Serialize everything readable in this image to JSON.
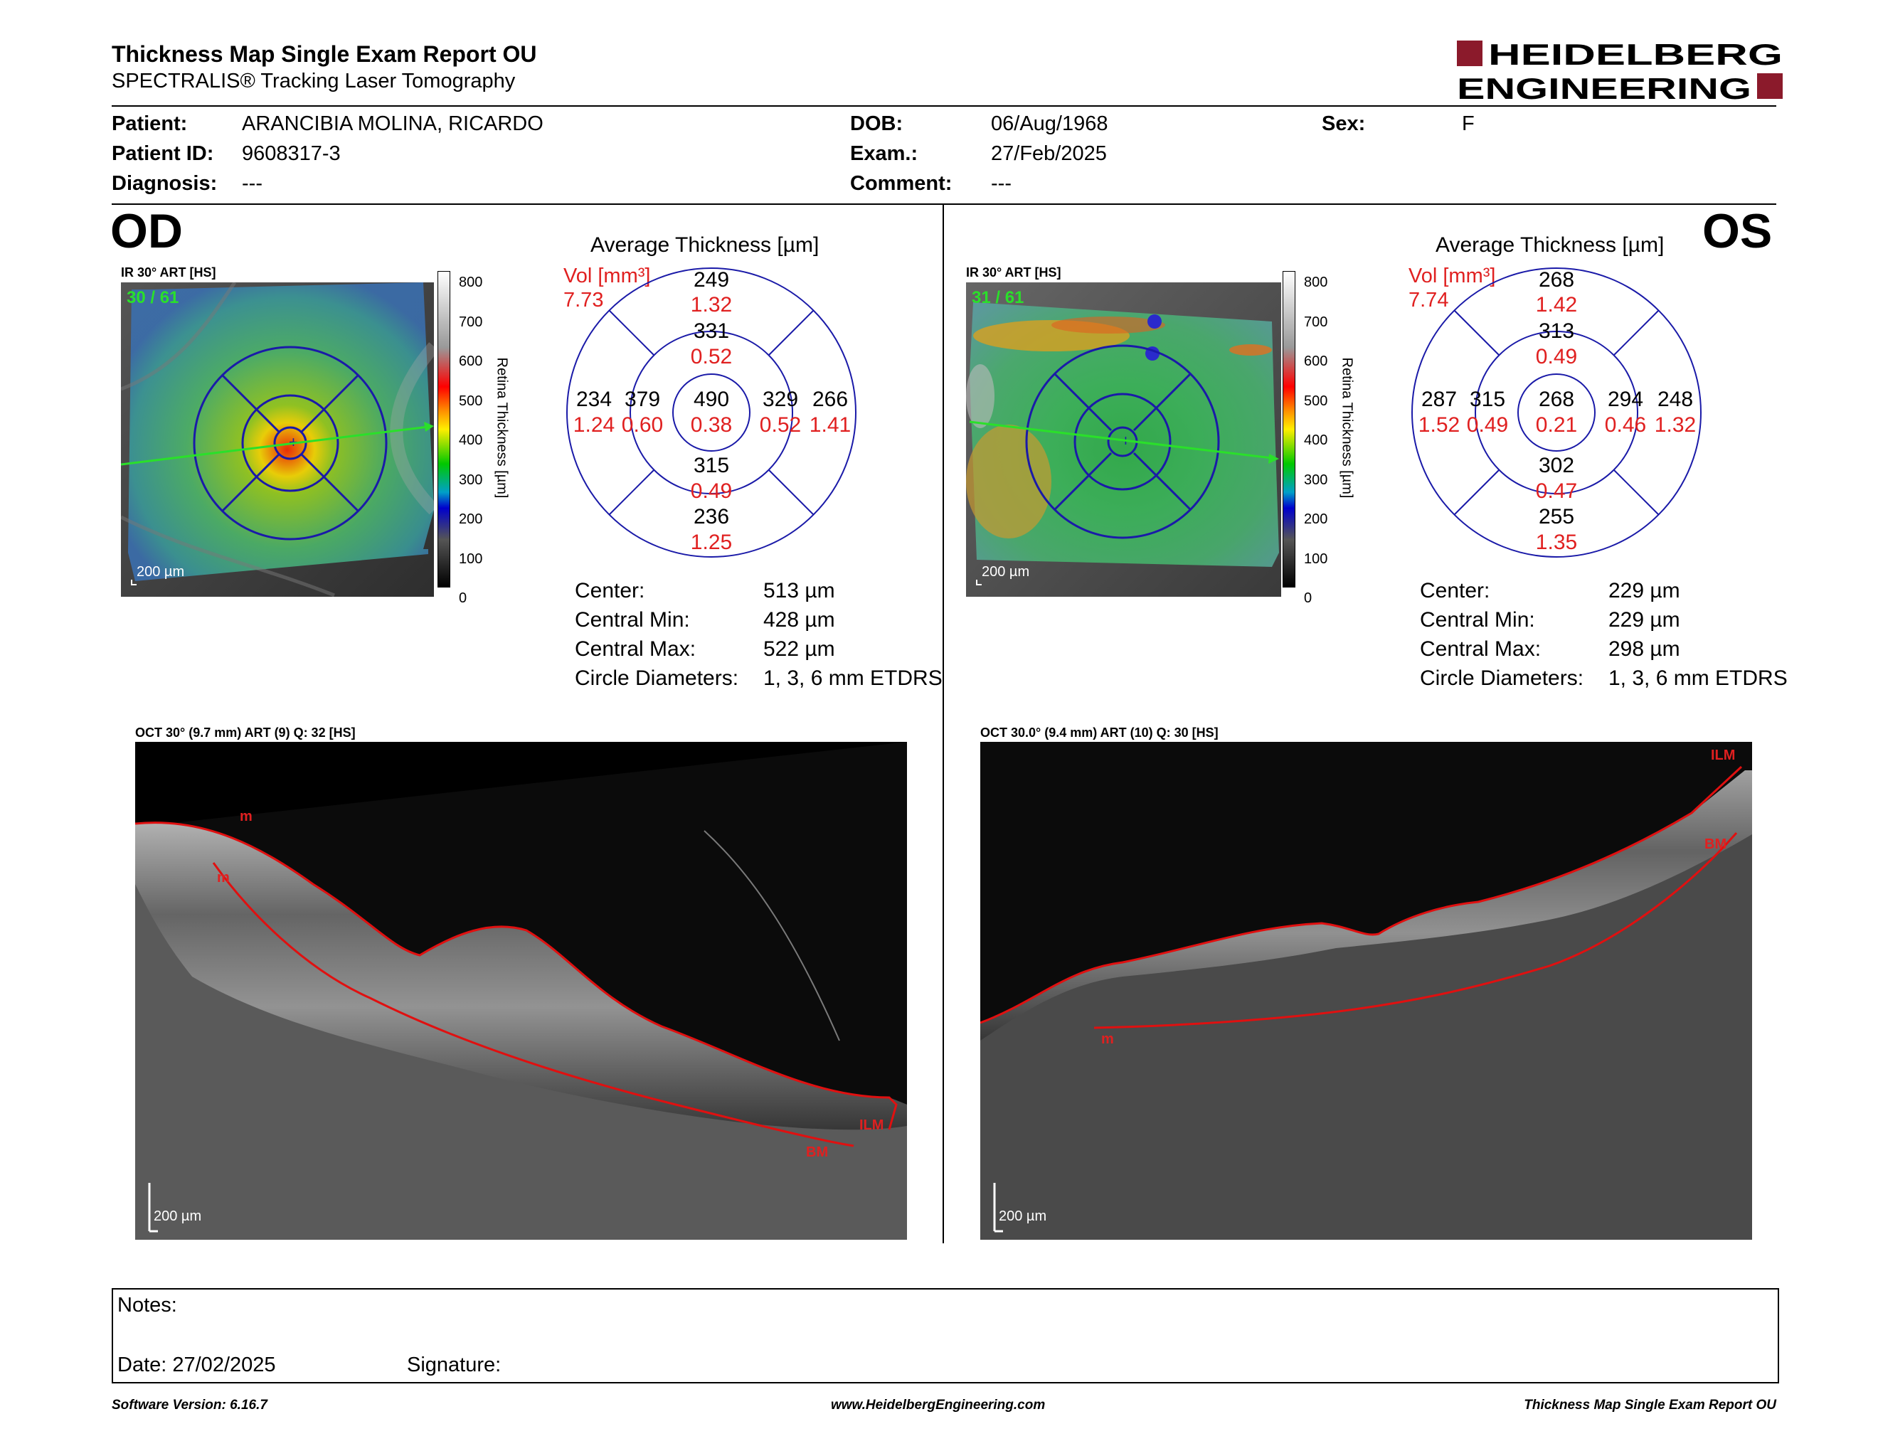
{
  "header": {
    "title": "Thickness Map Single Exam Report OU",
    "subtitle": "SPECTRALIS® Tracking Laser Tomography",
    "logo_top": "HEIDELBERG",
    "logo_bottom": "ENGINEERING",
    "logo_color": "#8b1a2b"
  },
  "patient": {
    "patient_label": "Patient:",
    "patient_value": "ARANCIBIA MOLINA, RICARDO",
    "id_label": "Patient ID:",
    "id_value": "9608317-3",
    "diag_label": "Diagnosis:",
    "diag_value": "---",
    "dob_label": "DOB:",
    "dob_value": "06/Aug/1968",
    "exam_label": "Exam.:",
    "exam_value": "27/Feb/2025",
    "comment_label": "Comment:",
    "comment_value": "---",
    "sex_label": "Sex:",
    "sex_value": "F"
  },
  "od": {
    "eye": "OD",
    "ir_label": "IR 30° ART [HS]",
    "frames": "30 / 61",
    "scale": "200 µm",
    "colorbar_ticks": [
      "800",
      "700",
      "600",
      "500",
      "400",
      "300",
      "200",
      "100",
      "0"
    ],
    "colorbar_title": "Retina  Thickness [µm]",
    "avg_title": "Average Thickness [µm]",
    "vol_label": "Vol [mm³]",
    "vol_value": "7.73",
    "grid": {
      "center": {
        "t": "490",
        "v": "0.38"
      },
      "inner_sup": {
        "t": "331",
        "v": "0.52"
      },
      "inner_inf": {
        "t": "315",
        "v": "0.49"
      },
      "inner_nas": {
        "t": "379",
        "v": "0.60"
      },
      "inner_tmp": {
        "t": "329",
        "v": "0.52"
      },
      "outer_sup": {
        "t": "249",
        "v": "1.32"
      },
      "outer_inf": {
        "t": "236",
        "v": "1.25"
      },
      "outer_nas": {
        "t": "234",
        "v": "1.24"
      },
      "outer_tmp": {
        "t": "266",
        "v": "1.41"
      }
    },
    "stats": [
      {
        "label": "Center:",
        "value": "513 µm"
      },
      {
        "label": "Central Min:",
        "value": "428 µm"
      },
      {
        "label": "Central Max:",
        "value": "522 µm"
      },
      {
        "label": "Circle Diameters:",
        "value": "1, 3, 6 mm ETDRS"
      }
    ],
    "oct_label": "OCT 30° (9.7 mm) ART (9) Q: 32 [HS]",
    "oct_marks": {
      "ilm": "ILM",
      "bm": "BM",
      "m1": "m",
      "m2": "m"
    },
    "oct_scale": "200 µm"
  },
  "os": {
    "eye": "OS",
    "ir_label": "IR 30° ART [HS]",
    "frames": "31 / 61",
    "scale": "200 µm",
    "colorbar_ticks": [
      "800",
      "700",
      "600",
      "500",
      "400",
      "300",
      "200",
      "100",
      "0"
    ],
    "colorbar_title": "Retina  Thickness [µm]",
    "avg_title": "Average Thickness [µm]",
    "vol_label": "Vol [mm³]",
    "vol_value": "7.74",
    "grid": {
      "center": {
        "t": "268",
        "v": "0.21"
      },
      "inner_sup": {
        "t": "313",
        "v": "0.49"
      },
      "inner_inf": {
        "t": "302",
        "v": "0.47"
      },
      "inner_nas": {
        "t": "315",
        "v": "0.49"
      },
      "inner_tmp": {
        "t": "294",
        "v": "0.46"
      },
      "outer_sup": {
        "t": "268",
        "v": "1.42"
      },
      "outer_inf": {
        "t": "255",
        "v": "1.35"
      },
      "outer_nas": {
        "t": "287",
        "v": "1.52"
      },
      "outer_tmp": {
        "t": "248",
        "v": "1.32"
      }
    },
    "stats": [
      {
        "label": "Center:",
        "value": "229 µm"
      },
      {
        "label": "Central Min:",
        "value": "229 µm"
      },
      {
        "label": "Central Max:",
        "value": "298 µm"
      },
      {
        "label": "Circle Diameters:",
        "value": "1, 3, 6 mm ETDRS"
      }
    ],
    "oct_label": "OCT 30.0° (9.4 mm) ART (10) Q: 30 [HS]",
    "oct_marks": {
      "ilm": "ILM",
      "bm": "BM",
      "m1": "m"
    },
    "oct_scale": "200 µm"
  },
  "notes": {
    "notes_label": "Notes:",
    "date_label": "Date: 27/02/2025",
    "signature_label": "Signature:"
  },
  "footer": {
    "left": "Software Version: 6.16.7",
    "center": "www.HeidelbergEngineering.com",
    "right": "Thickness Map Single Exam Report OU"
  }
}
